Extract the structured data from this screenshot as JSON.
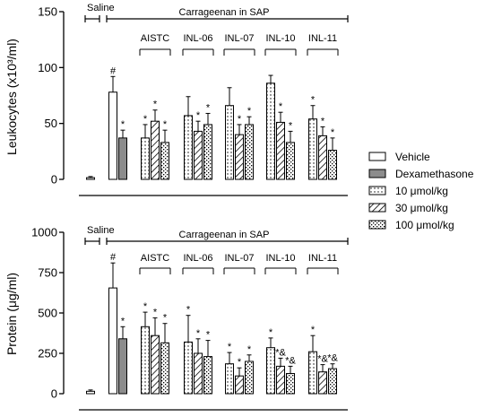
{
  "chart_data": [
    {
      "type": "bar",
      "ylabel": "Leukocytes (x10³/ml)",
      "ylim": [
        0,
        150
      ],
      "yticks": [
        "0",
        "50",
        "100",
        "150"
      ],
      "saline_label": "Saline",
      "carrageenan_label": "Carrageenan in SAP",
      "groups": [
        "AISTC",
        "INL-06",
        "INL-07",
        "INL-10",
        "INL-11"
      ],
      "saline": {
        "value": 1.5,
        "err": 1
      },
      "vehicle": {
        "value": 78,
        "err": 14,
        "mark": "#"
      },
      "dexamethasone": {
        "value": 37,
        "err": 7,
        "mark": "*"
      },
      "doses": [
        {
          "group": "AISTC",
          "values": [
            37,
            52,
            33
          ],
          "errors": [
            12,
            10,
            11
          ],
          "marks": [
            "*",
            "*",
            "*"
          ]
        },
        {
          "group": "INL-06",
          "values": [
            57,
            43,
            49
          ],
          "errors": [
            17,
            9,
            10
          ],
          "marks": [
            "",
            "*",
            "*"
          ]
        },
        {
          "group": "INL-07",
          "values": [
            66,
            40,
            49
          ],
          "errors": [
            16,
            9,
            7
          ],
          "marks": [
            "",
            "*",
            "*"
          ]
        },
        {
          "group": "INL-10",
          "values": [
            86,
            51,
            33
          ],
          "errors": [
            7,
            9,
            10
          ],
          "marks": [
            "",
            "*",
            "*"
          ]
        },
        {
          "group": "INL-11",
          "values": [
            54,
            39,
            26
          ],
          "errors": [
            12,
            8,
            11
          ],
          "marks": [
            "*",
            "*",
            "*"
          ]
        }
      ]
    },
    {
      "type": "bar",
      "ylabel": "Protein (μg/ml)",
      "ylim": [
        0,
        1000
      ],
      "yticks": [
        "0",
        "250",
        "500",
        "750",
        "1000"
      ],
      "saline_label": "Saline",
      "carrageenan_label": "Carrageenan in SAP",
      "groups": [
        "AISTC",
        "INL-06",
        "INL-07",
        "INL-10",
        "INL-11"
      ],
      "saline": {
        "value": 15,
        "err": 8
      },
      "vehicle": {
        "value": 655,
        "err": 155,
        "mark": "#"
      },
      "dexamethasone": {
        "value": 340,
        "err": 75,
        "mark": "*"
      },
      "doses": [
        {
          "group": "AISTC",
          "values": [
            415,
            360,
            315
          ],
          "errors": [
            90,
            110,
            120
          ],
          "marks": [
            "*",
            "*",
            "*"
          ]
        },
        {
          "group": "INL-06",
          "values": [
            320,
            250,
            230
          ],
          "errors": [
            165,
            90,
            100
          ],
          "marks": [
            "*",
            "*",
            "*"
          ]
        },
        {
          "group": "INL-07",
          "values": [
            185,
            110,
            200
          ],
          "errors": [
            70,
            50,
            40
          ],
          "marks": [
            "*",
            "*",
            "*"
          ]
        },
        {
          "group": "INL-10",
          "values": [
            285,
            170,
            125
          ],
          "errors": [
            60,
            50,
            45
          ],
          "marks": [
            "*",
            "*&",
            "*&"
          ]
        },
        {
          "group": "INL-11",
          "values": [
            260,
            135,
            155
          ],
          "errors": [
            100,
            45,
            30
          ],
          "marks": [
            "*",
            "*&",
            "*&"
          ]
        }
      ]
    }
  ],
  "legend": [
    {
      "label": "Vehicle",
      "pattern": "white"
    },
    {
      "label": "Dexamethasone",
      "pattern": "gray"
    },
    {
      "label": "10 μmol/kg",
      "pattern": "dots"
    },
    {
      "label": "30 μmol/kg",
      "pattern": "hatch"
    },
    {
      "label": "100 μmol/kg",
      "pattern": "checker"
    }
  ],
  "colors": {
    "gray_fill": "#8c8c8c",
    "ink": "#000000"
  }
}
